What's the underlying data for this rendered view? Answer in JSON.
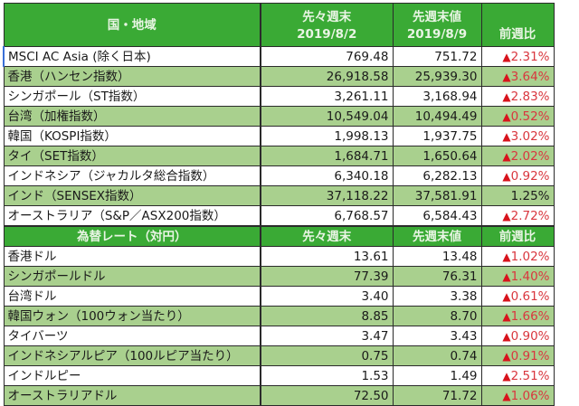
{
  "equity_section": {
    "headers": {
      "region": "国・地域",
      "prev_prev_week": "先々週末",
      "prev_prev_date": "2019/8/2",
      "prev_week": "先週末値",
      "prev_date": "2019/8/9",
      "change": "前週比"
    },
    "rows": [
      {
        "name": "MSCI AC Asia (除く日本)",
        "v1": "769.48",
        "v2": "751.72",
        "change": "2.31%",
        "down": true
      },
      {
        "name": "香港（ハンセン指数）",
        "v1": "26,918.58",
        "v2": "25,939.30",
        "change": "3.64%",
        "down": true
      },
      {
        "name": "シンガポール（ST指数）",
        "v1": "3,261.11",
        "v2": "3,168.94",
        "change": "2.83%",
        "down": true
      },
      {
        "name": "台湾（加権指数）",
        "v1": "10,549.04",
        "v2": "10,494.49",
        "change": "0.52%",
        "down": true
      },
      {
        "name": "韓国（KOSPI指数）",
        "v1": "1,998.13",
        "v2": "1,937.75",
        "change": "3.02%",
        "down": true
      },
      {
        "name": "タイ（SET指数）",
        "v1": "1,684.71",
        "v2": "1,650.64",
        "change": "2.02%",
        "down": true
      },
      {
        "name": "インドネシア（ジャカルタ総合指数）",
        "v1": "6,340.18",
        "v2": "6,282.13",
        "change": "0.92%",
        "down": true
      },
      {
        "name": "インド（SENSEX指数）",
        "v1": "37,118.22",
        "v2": "37,581.91",
        "change": "1.25%",
        "down": false
      },
      {
        "name": "オーストラリア（S&P／ASX200指数）",
        "v1": "6,768.57",
        "v2": "6,584.43",
        "change": "2.72%",
        "down": true
      }
    ]
  },
  "fx_section": {
    "headers": {
      "region": "為替レート（対円）",
      "prev_prev_week": "先々週末",
      "prev_week": "先週末値",
      "change": "前週比"
    },
    "rows": [
      {
        "name": "香港ドル",
        "v1": "13.61",
        "v2": "13.48",
        "change": "1.02%",
        "down": true
      },
      {
        "name": "シンガポールドル",
        "v1": "77.39",
        "v2": "76.31",
        "change": "1.40%",
        "down": true
      },
      {
        "name": "台湾ドル",
        "v1": "3.40",
        "v2": "3.38",
        "change": "0.61%",
        "down": true
      },
      {
        "name": "韓国ウォン（100ウォン当たり）",
        "v1": "8.85",
        "v2": "8.70",
        "change": "1.66%",
        "down": true
      },
      {
        "name": "タイバーツ",
        "v1": "3.47",
        "v2": "3.43",
        "change": "0.90%",
        "down": true
      },
      {
        "name": "インドネシアルピア（100ルピア当たり）",
        "v1": "0.75",
        "v2": "0.74",
        "change": "0.91%",
        "down": true
      },
      {
        "name": "インドルピー",
        "v1": "1.53",
        "v2": "1.49",
        "change": "2.51%",
        "down": true
      },
      {
        "name": "オーストラリアドル",
        "v1": "72.50",
        "v2": "71.72",
        "change": "1.06%",
        "down": true
      }
    ]
  },
  "symbols": {
    "down_marker": "▲"
  },
  "colors": {
    "header_green": "#3aaa35",
    "row_green": "#a9d08e",
    "negative_red": "#d9363e"
  }
}
